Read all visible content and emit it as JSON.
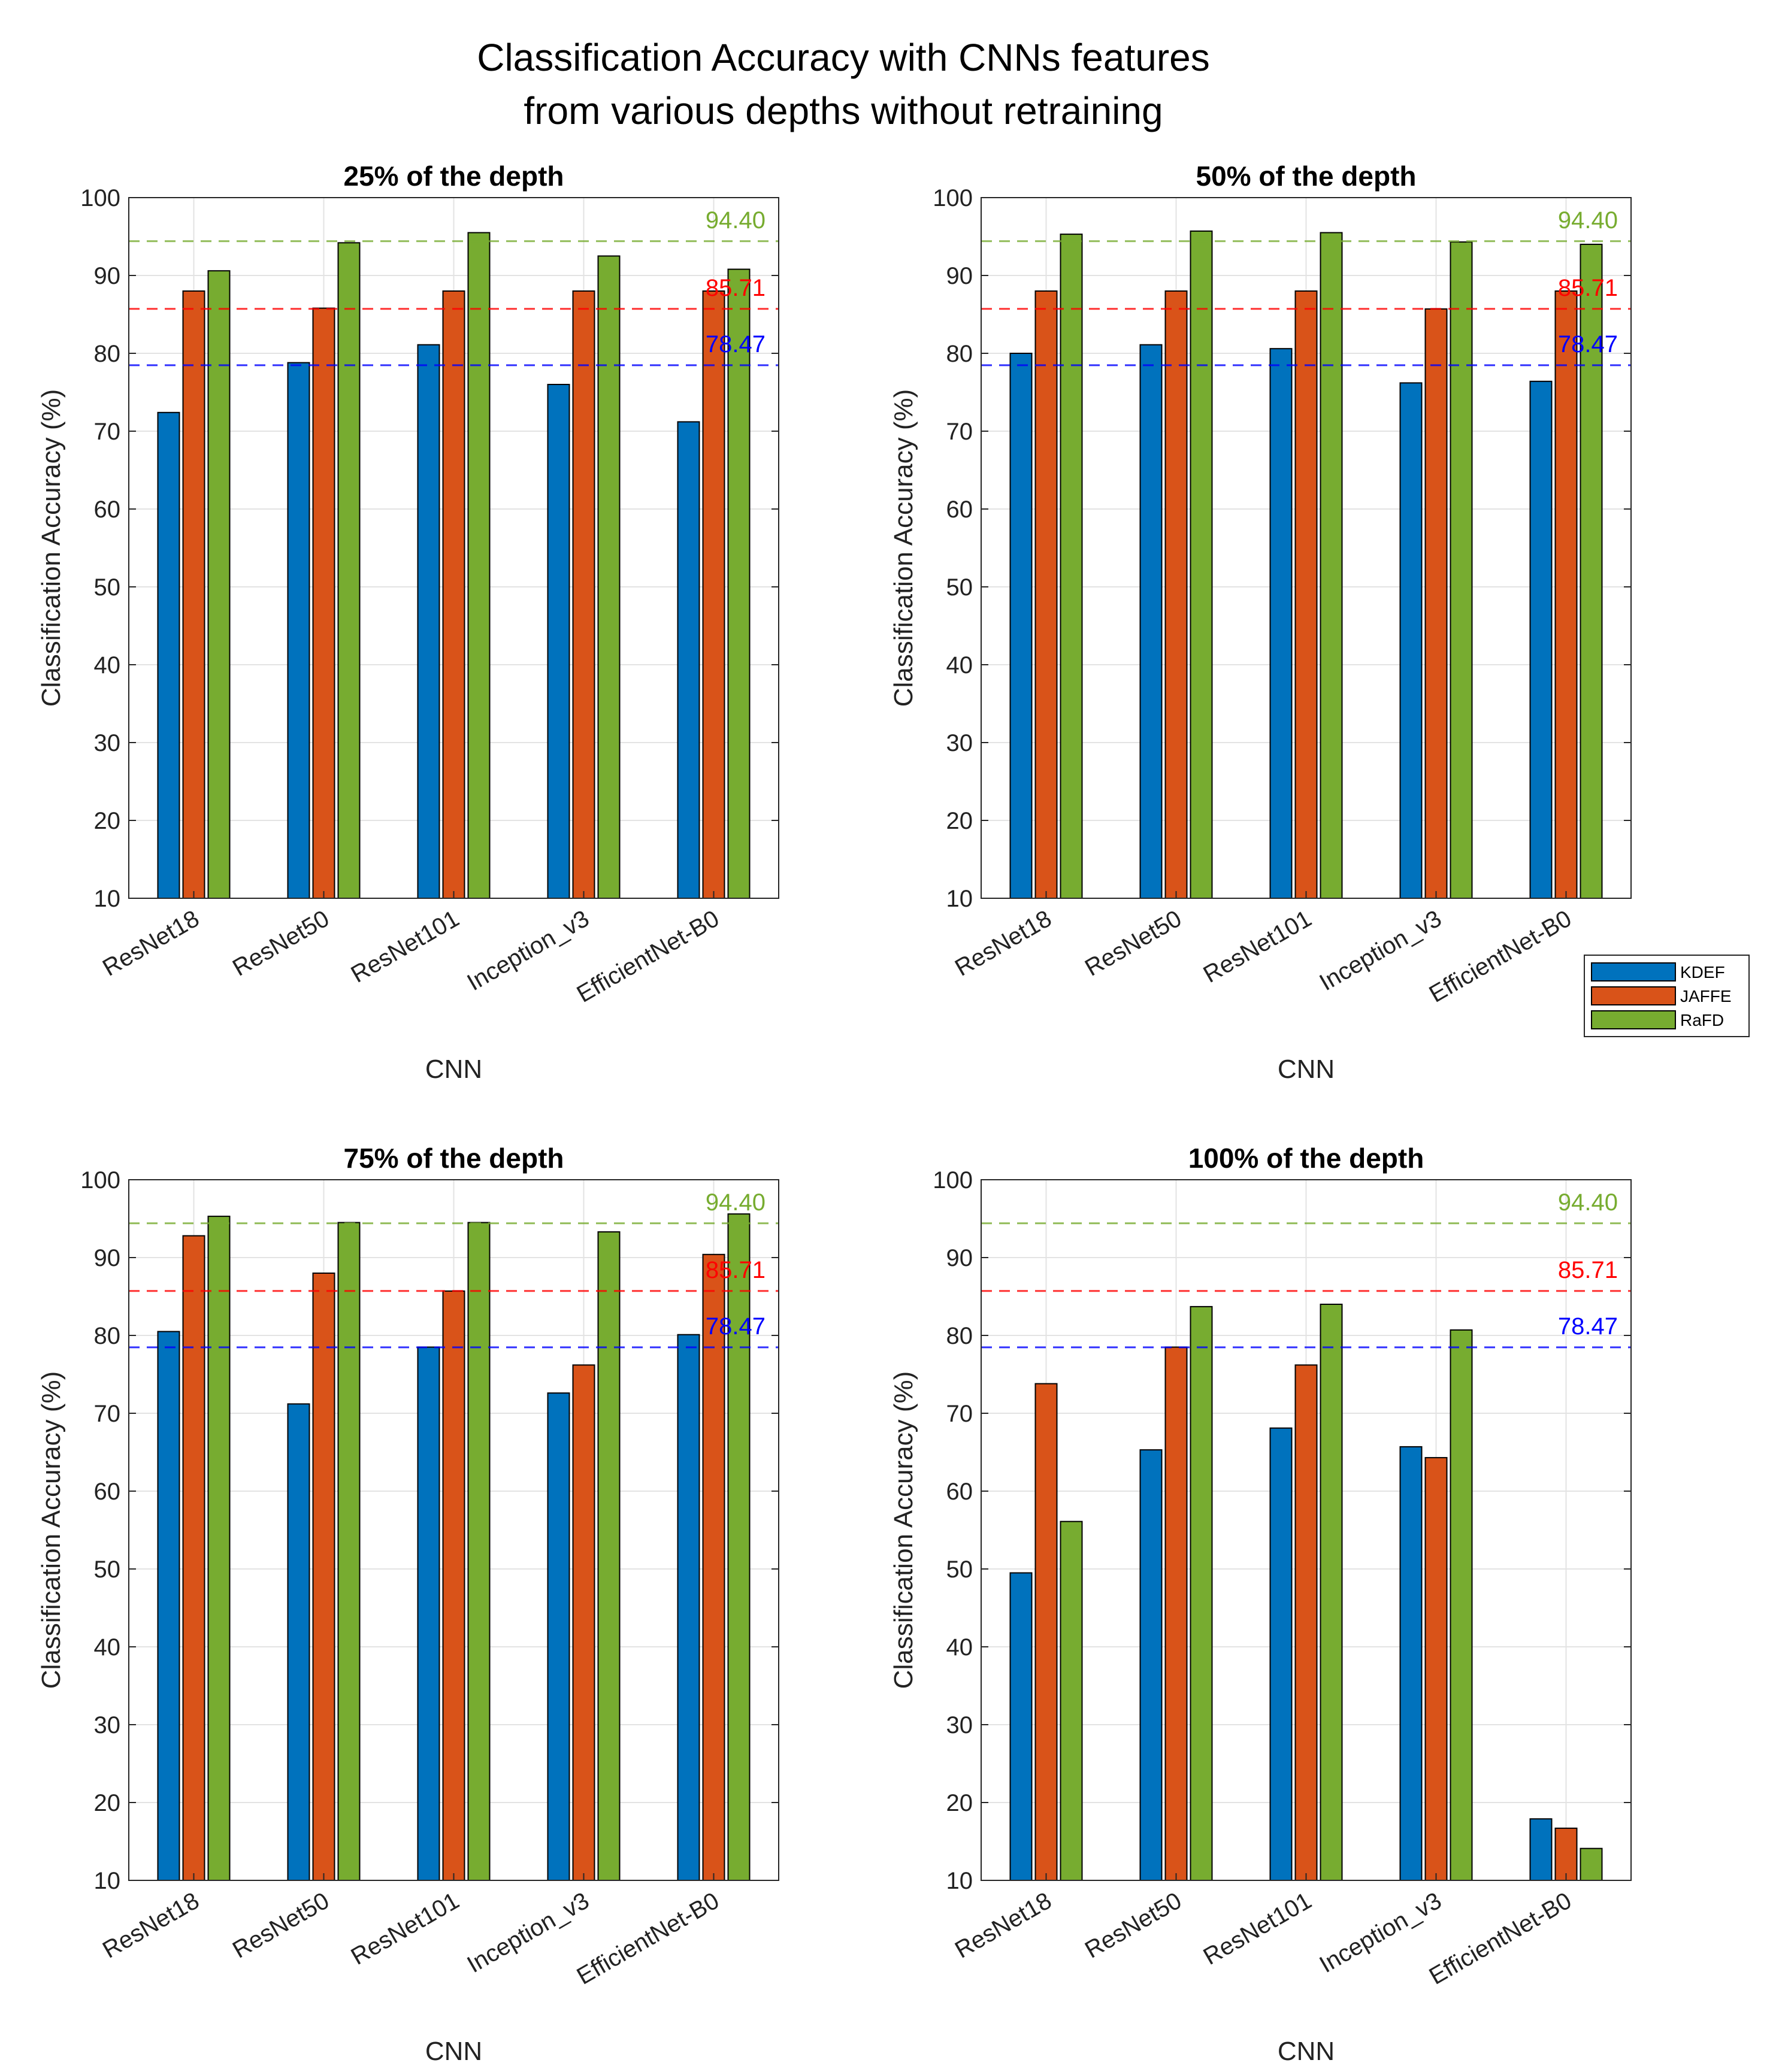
{
  "figure": {
    "title_line1": "Classification Accuracy with CNNs features",
    "title_line2": "from various depths without retraining"
  },
  "legend": {
    "entries": [
      "KDEF",
      "JAFFE",
      "RaFD"
    ],
    "colors": [
      "#0072BD",
      "#D95319",
      "#77AC30"
    ]
  },
  "chart_data": [
    {
      "type": "bar",
      "title": "25% of the depth",
      "xlabel": "CNN",
      "ylabel": "Classification Accuracy (%)",
      "ylim": [
        10,
        100
      ],
      "yticks": [
        10,
        20,
        30,
        40,
        50,
        60,
        70,
        80,
        90,
        100
      ],
      "grid": true,
      "categories": [
        "ResNet18",
        "ResNet50",
        "ResNet101",
        "Inception_v3",
        "EfficientNet-B0"
      ],
      "series": [
        {
          "name": "KDEF",
          "values": [
            72.4,
            78.8,
            81.1,
            76.0,
            71.2
          ]
        },
        {
          "name": "JAFFE",
          "values": [
            88.0,
            85.8,
            88.0,
            88.0,
            88.0
          ]
        },
        {
          "name": "RaFD",
          "values": [
            90.6,
            94.2,
            95.5,
            92.5,
            90.8
          ]
        }
      ],
      "reference_lines": [
        {
          "name": "RaFD",
          "value": 94.4,
          "label": "94.40"
        },
        {
          "name": "JAFFE",
          "value": 85.71,
          "label": "85.71"
        },
        {
          "name": "KDEF",
          "value": 78.47,
          "label": "78.47"
        }
      ]
    },
    {
      "type": "bar",
      "title": "50% of the depth",
      "xlabel": "CNN",
      "ylabel": "Classification Accuracy (%)",
      "ylim": [
        10,
        100
      ],
      "yticks": [
        10,
        20,
        30,
        40,
        50,
        60,
        70,
        80,
        90,
        100
      ],
      "grid": true,
      "categories": [
        "ResNet18",
        "ResNet50",
        "ResNet101",
        "Inception_v3",
        "EfficientNet-B0"
      ],
      "series": [
        {
          "name": "KDEF",
          "values": [
            80.0,
            81.1,
            80.6,
            76.2,
            76.4
          ]
        },
        {
          "name": "JAFFE",
          "values": [
            88.0,
            88.0,
            88.0,
            85.7,
            88.0
          ]
        },
        {
          "name": "RaFD",
          "values": [
            95.3,
            95.7,
            95.5,
            94.3,
            94.0
          ]
        }
      ],
      "reference_lines": [
        {
          "name": "RaFD",
          "value": 94.4,
          "label": "94.40"
        },
        {
          "name": "JAFFE",
          "value": 85.71,
          "label": "85.71"
        },
        {
          "name": "KDEF",
          "value": 78.47,
          "label": "78.47"
        }
      ]
    },
    {
      "type": "bar",
      "title": "75% of the depth",
      "xlabel": "CNN",
      "ylabel": "Classification Accuracy (%)",
      "ylim": [
        10,
        100
      ],
      "yticks": [
        10,
        20,
        30,
        40,
        50,
        60,
        70,
        80,
        90,
        100
      ],
      "grid": true,
      "categories": [
        "ResNet18",
        "ResNet50",
        "ResNet101",
        "Inception_v3",
        "EfficientNet-B0"
      ],
      "series": [
        {
          "name": "KDEF",
          "values": [
            80.5,
            71.2,
            78.5,
            72.6,
            80.1
          ]
        },
        {
          "name": "JAFFE",
          "values": [
            92.8,
            88.0,
            85.7,
            76.2,
            90.4
          ]
        },
        {
          "name": "RaFD",
          "values": [
            95.3,
            94.5,
            94.5,
            93.3,
            95.6
          ]
        }
      ],
      "reference_lines": [
        {
          "name": "RaFD",
          "value": 94.4,
          "label": "94.40"
        },
        {
          "name": "JAFFE",
          "value": 85.71,
          "label": "85.71"
        },
        {
          "name": "KDEF",
          "value": 78.47,
          "label": "78.47"
        }
      ]
    },
    {
      "type": "bar",
      "title": "100% of the depth",
      "xlabel": "CNN",
      "ylabel": "Classification Accuracy (%)",
      "ylim": [
        10,
        100
      ],
      "yticks": [
        10,
        20,
        30,
        40,
        50,
        60,
        70,
        80,
        90,
        100
      ],
      "grid": true,
      "categories": [
        "ResNet18",
        "ResNet50",
        "ResNet101",
        "Inception_v3",
        "EfficientNet-B0"
      ],
      "series": [
        {
          "name": "KDEF",
          "values": [
            49.5,
            65.3,
            68.1,
            65.7,
            17.9
          ]
        },
        {
          "name": "JAFFE",
          "values": [
            73.8,
            78.5,
            76.2,
            64.3,
            16.7
          ]
        },
        {
          "name": "RaFD",
          "values": [
            56.1,
            83.7,
            84.0,
            80.7,
            14.1
          ]
        }
      ],
      "reference_lines": [
        {
          "name": "RaFD",
          "value": 94.4,
          "label": "94.40"
        },
        {
          "name": "JAFFE",
          "value": 85.71,
          "label": "85.71"
        },
        {
          "name": "KDEF",
          "value": 78.47,
          "label": "78.47"
        }
      ]
    }
  ]
}
